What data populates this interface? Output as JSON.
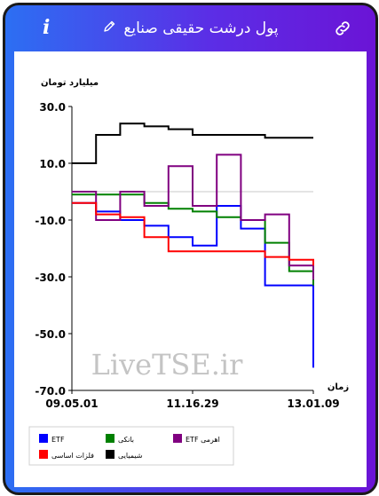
{
  "header": {
    "title": "پول درشت حقیقی صنایع",
    "info_icon": "info-icon",
    "edit_icon": "pencil-icon",
    "link_icon": "link-icon"
  },
  "watermark": "LiveTSE.ir",
  "colors": {
    "etf": "#0000ff",
    "banki": "#008000",
    "etf_ahromi": "#800080",
    "felezat": "#ff0000",
    "shimiyaei": "#000000"
  },
  "chart_data": {
    "type": "line",
    "ylabel": "میلیارد تومان",
    "xlabel": "زمان",
    "ylim": [
      -70,
      30
    ],
    "yticks": [
      "30.0",
      "10.0",
      "-10.0",
      "-30.0",
      "-50.0",
      "-70.0"
    ],
    "xticks": [
      "09.05.01",
      "11.16.29",
      "13.01.09"
    ],
    "x": [
      0,
      10,
      20,
      30,
      40,
      50,
      60,
      70,
      80,
      90,
      100
    ],
    "series": [
      {
        "name": "ETF",
        "values": [
          -4,
          -7,
          -10,
          -12,
          -16,
          -19,
          -5,
          -13,
          -33,
          -33,
          -62
        ]
      },
      {
        "name": "بانکی",
        "values": [
          -1,
          -1,
          -1,
          -4,
          -6,
          -7,
          -9,
          -10,
          -18,
          -28,
          -33
        ]
      },
      {
        "name": "ETF اهرمی",
        "values": [
          0,
          -10,
          0,
          -5,
          9,
          -5,
          13,
          -10,
          -8,
          -26,
          -31
        ]
      },
      {
        "name": "فلزات اساسی",
        "values": [
          -4,
          -8,
          -9,
          -16,
          -21,
          -21,
          -21,
          -21,
          -23,
          -24,
          -26
        ]
      },
      {
        "name": "شیمیایی",
        "values": [
          10,
          20,
          24,
          23,
          22,
          20,
          20,
          20,
          19,
          19,
          19
        ]
      }
    ],
    "legend": "bottom",
    "grid": false
  }
}
